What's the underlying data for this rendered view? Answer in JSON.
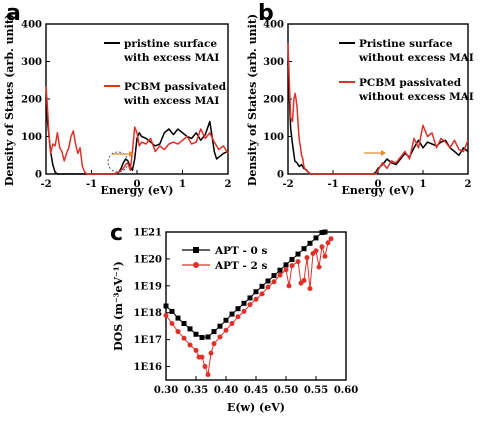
{
  "chart_data": [
    {
      "panel": "a",
      "type": "line",
      "xlabel": "Energy (eV)",
      "ylabel": "Density of States (arb. unit)",
      "xlim": [
        -2,
        2
      ],
      "ylim": [
        0,
        400
      ],
      "xticks": [
        -2,
        -1,
        0,
        1,
        2
      ],
      "yticks": [
        0,
        100,
        200,
        300,
        400
      ],
      "legend_position": "top-right",
      "annotations": [
        "arrow near -0.2 eV pointing right",
        "dashed ellipse around -0.25 eV peak"
      ],
      "series": [
        {
          "name": "pristine surface\nwith excess MAI",
          "color": "#000000",
          "x": [
            -2.0,
            -1.95,
            -1.9,
            -1.85,
            -1.8,
            -1.75,
            -1.7,
            -1.5,
            -1.0,
            -0.5,
            -0.4,
            -0.35,
            -0.3,
            -0.25,
            -0.2,
            -0.15,
            -0.1,
            -0.05,
            0.0,
            0.05,
            0.1,
            0.2,
            0.3,
            0.4,
            0.5,
            0.6,
            0.7,
            0.8,
            0.9,
            1.0,
            1.1,
            1.2,
            1.3,
            1.4,
            1.5,
            1.6,
            1.65,
            1.7,
            1.75,
            1.8,
            1.9,
            2.0
          ],
          "y": [
            180,
            120,
            60,
            25,
            5,
            0,
            0,
            0,
            0,
            0,
            5,
            15,
            30,
            40,
            35,
            20,
            10,
            40,
            95,
            110,
            100,
            95,
            85,
            75,
            80,
            110,
            120,
            105,
            120,
            110,
            100,
            95,
            110,
            90,
            105,
            140,
            100,
            60,
            40,
            45,
            55,
            60
          ]
        },
        {
          "name": "PCBM passivated\nwith excess MAI",
          "color": "#e0302a",
          "x": [
            -2.0,
            -1.97,
            -1.93,
            -1.9,
            -1.85,
            -1.8,
            -1.75,
            -1.7,
            -1.65,
            -1.6,
            -1.55,
            -1.5,
            -1.45,
            -1.4,
            -1.35,
            -1.3,
            -1.25,
            -1.2,
            -1.15,
            -1.1,
            -1.05,
            -1.0,
            -0.5,
            -0.4,
            -0.3,
            -0.25,
            -0.2,
            -0.15,
            -0.1,
            -0.05,
            0.0,
            0.05,
            0.1,
            0.2,
            0.3,
            0.4,
            0.5,
            0.6,
            0.7,
            0.8,
            0.9,
            1.0,
            1.1,
            1.2,
            1.3,
            1.4,
            1.5,
            1.6,
            1.7,
            1.8,
            1.9,
            2.0
          ],
          "y": [
            235,
            180,
            95,
            55,
            80,
            75,
            110,
            70,
            60,
            35,
            55,
            70,
            100,
            115,
            80,
            55,
            70,
            20,
            5,
            0,
            0,
            0,
            0,
            5,
            15,
            25,
            30,
            10,
            60,
            125,
            110,
            75,
            85,
            80,
            95,
            60,
            75,
            65,
            80,
            85,
            80,
            90,
            100,
            80,
            85,
            120,
            95,
            110,
            85,
            65,
            75,
            55
          ]
        }
      ]
    },
    {
      "panel": "b",
      "type": "line",
      "xlabel": "Energy (eV)",
      "ylabel": "Density of States (arb. unit)",
      "xlim": [
        -2,
        2
      ],
      "ylim": [
        0,
        400
      ],
      "xticks": [
        -2,
        -1,
        0,
        1,
        2
      ],
      "yticks": [
        0,
        100,
        200,
        300,
        400
      ],
      "legend_position": "top-right",
      "annotations": [
        "arrow near -0.1 eV pointing right"
      ],
      "series": [
        {
          "name": "Pristine surface\nwithout excess MAI",
          "color": "#000000",
          "x": [
            -2.0,
            -1.97,
            -1.94,
            -1.9,
            -1.85,
            -1.8,
            -1.75,
            -1.7,
            -1.65,
            -1.6,
            -1.55,
            -1.5,
            -1.0,
            -0.5,
            -0.1,
            -0.05,
            0.0,
            0.1,
            0.2,
            0.3,
            0.4,
            0.5,
            0.6,
            0.7,
            0.8,
            0.9,
            1.0,
            1.1,
            1.2,
            1.3,
            1.4,
            1.5,
            1.6,
            1.7,
            1.8,
            1.9,
            2.0
          ],
          "y": [
            300,
            200,
            120,
            80,
            35,
            30,
            20,
            25,
            15,
            12,
            5,
            0,
            0,
            0,
            0,
            5,
            15,
            25,
            40,
            30,
            25,
            40,
            55,
            45,
            70,
            90,
            70,
            85,
            80,
            75,
            85,
            90,
            70,
            60,
            50,
            70,
            60
          ]
        },
        {
          "name": "PCBM passivated\nwithout excess MAI",
          "color": "#e0302a",
          "x": [
            -2.0,
            -1.97,
            -1.94,
            -1.9,
            -1.87,
            -1.84,
            -1.8,
            -1.77,
            -1.75,
            -1.72,
            -1.7,
            -1.67,
            -1.65,
            -1.6,
            -1.55,
            -1.5,
            -1.0,
            -0.5,
            -0.05,
            0.0,
            0.05,
            0.1,
            0.2,
            0.3,
            0.4,
            0.5,
            0.6,
            0.7,
            0.8,
            0.9,
            1.0,
            1.1,
            1.2,
            1.3,
            1.4,
            1.5,
            1.6,
            1.7,
            1.8,
            1.9,
            2.0
          ],
          "y": [
            350,
            240,
            150,
            140,
            200,
            215,
            180,
            120,
            90,
            70,
            50,
            40,
            20,
            10,
            5,
            0,
            0,
            0,
            0,
            10,
            20,
            30,
            15,
            35,
            30,
            45,
            60,
            40,
            95,
            70,
            130,
            100,
            110,
            70,
            95,
            85,
            70,
            90,
            65,
            60,
            90
          ]
        }
      ]
    },
    {
      "panel": "c",
      "type": "line",
      "xlabel": "E(w) (eV)",
      "ylabel": "DOS (m⁻³eV⁻¹)",
      "xlim": [
        0.3,
        0.6
      ],
      "ylim_log10": [
        15.5,
        21
      ],
      "y_scale": "log",
      "xticks": [
        "0.30",
        "0.35",
        "0.40",
        "0.45",
        "0.50",
        "0.55",
        "0.60"
      ],
      "yticks": [
        "1E16",
        "1E17",
        "1E18",
        "1E19",
        "1E20",
        "1E21"
      ],
      "legend_position": "top-left",
      "series": [
        {
          "name": "APT - 0 s",
          "color": "#000000",
          "marker": "square",
          "x": [
            0.3,
            0.31,
            0.32,
            0.33,
            0.34,
            0.35,
            0.36,
            0.37,
            0.38,
            0.39,
            0.4,
            0.41,
            0.42,
            0.43,
            0.44,
            0.45,
            0.46,
            0.47,
            0.48,
            0.49,
            0.5,
            0.51,
            0.52,
            0.53,
            0.54,
            0.55,
            0.56,
            0.565
          ],
          "log10_y": [
            18.25,
            18.05,
            17.8,
            17.6,
            17.4,
            17.2,
            17.08,
            17.1,
            17.3,
            17.5,
            17.72,
            17.95,
            18.15,
            18.35,
            18.55,
            18.78,
            18.98,
            19.18,
            19.38,
            19.58,
            19.78,
            19.98,
            20.18,
            20.38,
            20.58,
            20.78,
            20.98,
            21.0
          ]
        },
        {
          "name": "APT - 2 s",
          "color": "#e0302a",
          "marker": "circle",
          "x": [
            0.3,
            0.31,
            0.32,
            0.33,
            0.34,
            0.35,
            0.355,
            0.36,
            0.365,
            0.37,
            0.375,
            0.38,
            0.39,
            0.4,
            0.41,
            0.42,
            0.43,
            0.44,
            0.45,
            0.46,
            0.47,
            0.48,
            0.49,
            0.5,
            0.505,
            0.51,
            0.52,
            0.525,
            0.53,
            0.535,
            0.54,
            0.545,
            0.55,
            0.555,
            0.56,
            0.565,
            0.57,
            0.575
          ],
          "log10_y": [
            17.9,
            17.6,
            17.3,
            17.05,
            16.8,
            16.6,
            16.35,
            16.35,
            16.0,
            15.7,
            16.5,
            16.85,
            17.1,
            17.35,
            17.6,
            17.85,
            18.05,
            18.3,
            18.5,
            18.7,
            18.95,
            19.15,
            19.4,
            19.6,
            19.0,
            19.75,
            19.9,
            19.1,
            19.2,
            20.05,
            18.9,
            20.2,
            20.3,
            19.7,
            20.45,
            20.1,
            20.6,
            20.75
          ]
        }
      ]
    }
  ]
}
